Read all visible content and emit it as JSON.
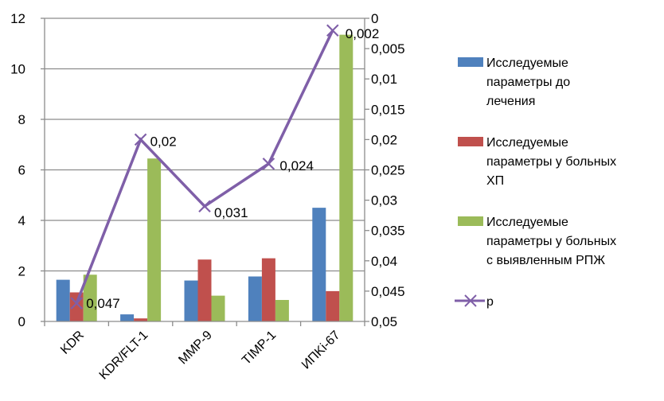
{
  "chart_data": {
    "type": "bar",
    "title": "",
    "xlabel": "",
    "ylabel": "",
    "categories": [
      "KDR",
      "KDR/FLT-1",
      "MMP-9",
      "TIMP-1",
      "ИПKi-67"
    ],
    "series": [
      {
        "name": "Исследуемые параметры до лечения",
        "color": "#4f81bd",
        "values": [
          1.65,
          0.28,
          1.62,
          1.78,
          4.5
        ]
      },
      {
        "name": "Исследуемые параметры у больных ХП",
        "color": "#c0504d",
        "values": [
          1.15,
          0.12,
          2.45,
          2.5,
          1.2
        ]
      },
      {
        "name": "Исследуемые параметры у больных с выявленным РПЖ",
        "color": "#9bbb59",
        "values": [
          1.85,
          6.45,
          1.02,
          0.85,
          11.35
        ]
      }
    ],
    "line_series": {
      "name": "p",
      "color": "#7f5fa8",
      "marker": "x",
      "axis": "right",
      "values": [
        0.047,
        0.02,
        0.031,
        0.024,
        0.002
      ],
      "labels": [
        "0,047",
        "0,02",
        "0,031",
        "0,024",
        "0,002"
      ]
    },
    "left_axis": {
      "min": 0,
      "max": 12,
      "ticks": [
        "0",
        "2",
        "4",
        "6",
        "8",
        "10",
        "12"
      ],
      "tick_values": [
        0,
        2,
        4,
        6,
        8,
        10,
        12
      ]
    },
    "right_axis": {
      "min": 0,
      "max": 0.05,
      "reversed": true,
      "ticks": [
        "0",
        "0,005",
        "0,01",
        "0,015",
        "0,02",
        "0,025",
        "0,03",
        "0,035",
        "0,04",
        "0,045",
        "0,05"
      ],
      "tick_values": [
        0,
        0.005,
        0.01,
        0.015,
        0.02,
        0.025,
        0.03,
        0.035,
        0.04,
        0.045,
        0.05
      ]
    },
    "grid": true,
    "legend_position": "right",
    "legend": [
      {
        "type": "bar",
        "lines": [
          "Исследуемые",
          "параметры до",
          "лечения"
        ],
        "color": "#4f81bd"
      },
      {
        "type": "bar",
        "lines": [
          "Исследуемые",
          "параметры у больных",
          "ХП"
        ],
        "color": "#c0504d"
      },
      {
        "type": "bar",
        "lines": [
          "Исследуемые",
          "параметры у больных",
          "с выявленным РПЖ"
        ],
        "color": "#9bbb59"
      },
      {
        "type": "line",
        "lines": [
          "p"
        ],
        "color": "#7f5fa8"
      }
    ]
  }
}
